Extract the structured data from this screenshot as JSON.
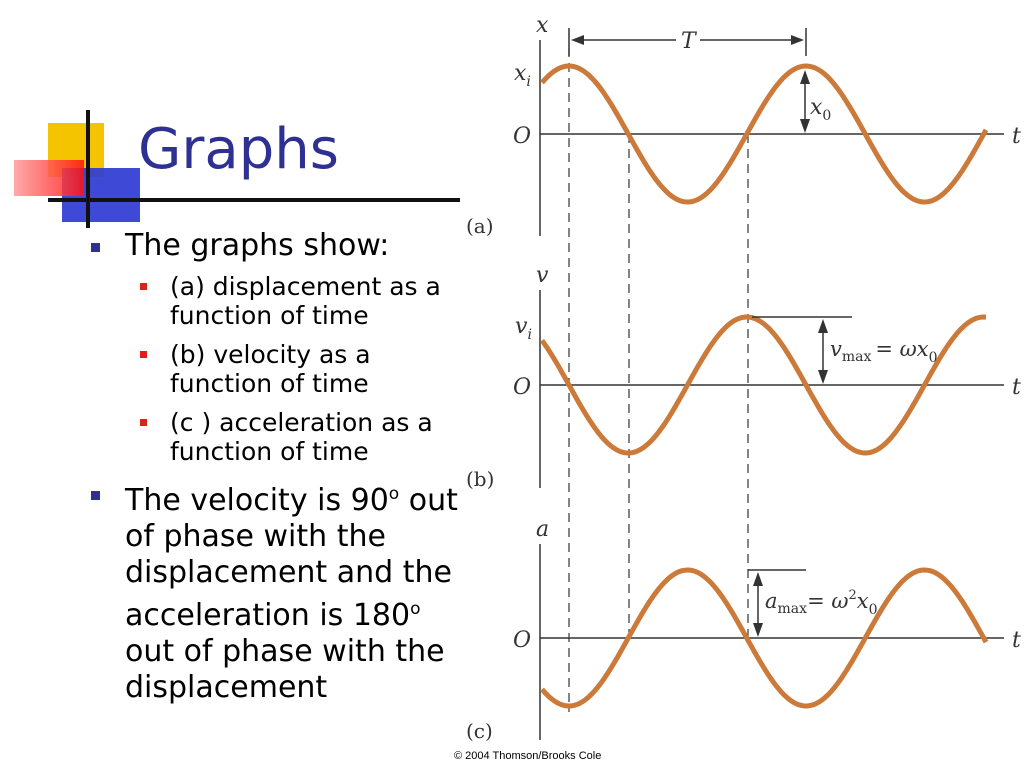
{
  "slide": {
    "title": "Graphs",
    "bullets": [
      {
        "text": "The graphs show:",
        "sub": [
          "(a) displacement as a function of time",
          "(b) velocity as a function of time",
          "(c ) acceleration as a function of time"
        ]
      },
      {
        "text_parts": [
          "The velocity is 90",
          "o",
          " out of phase with the displacement and the acceleration is 180",
          "o",
          " out of phase with the displacement"
        ]
      }
    ],
    "colors": {
      "title": "#2e3192",
      "bullet_l1": "#2e3192",
      "bullet_l2": "#e01e1e",
      "curve": "#cc7a3a"
    }
  },
  "figure": {
    "panels": [
      {
        "caption": "(a)",
        "axis_label": "x",
        "initial_label": "x",
        "initial_sub": "i",
        "amp_label": "x",
        "amp_sub": "0",
        "origin": "O",
        "time": "t"
      },
      {
        "caption": "(b)",
        "axis_label": "v",
        "initial_label": "v",
        "initial_sub": "i",
        "amp_label": "v",
        "amp_sub": "max",
        "amp_rhs": "= ωx",
        "amp_rhs_sub": "0",
        "origin": "O",
        "time": "t"
      },
      {
        "caption": "(c)",
        "axis_label": "a",
        "amp_label": "a",
        "amp_sub": "max",
        "amp_rhs": "= ω",
        "amp_rhs_sup": "2",
        "amp_rhs_tail": "x",
        "amp_rhs_sub": "0",
        "origin": "O",
        "time": "t"
      }
    ],
    "period_label": "T",
    "copyright": "© 2004 Thomson/Brooks Cole"
  }
}
